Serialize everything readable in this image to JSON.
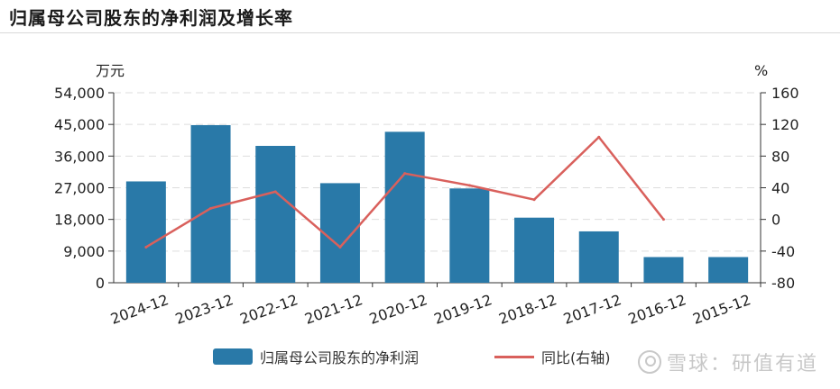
{
  "header": {
    "title": "归属母公司股东的净利润及增长率"
  },
  "chart_data": {
    "type": "bar",
    "categories": [
      "2024-12",
      "2023-12",
      "2022-12",
      "2021-12",
      "2020-12",
      "2019-12",
      "2018-12",
      "2017-12",
      "2016-12",
      "2015-12"
    ],
    "series": [
      {
        "name": "归属母公司股东的净利润",
        "type": "bar",
        "axis": "left",
        "values": [
          28800,
          44800,
          38900,
          28300,
          42900,
          26800,
          18500,
          14600,
          7300,
          7300
        ]
      },
      {
        "name": "同比(右轴)",
        "type": "line",
        "axis": "right",
        "values": [
          -35,
          14,
          35,
          -35,
          58,
          43,
          25,
          104,
          0,
          null
        ]
      }
    ],
    "left_axis": {
      "unit": "万元",
      "ylim": [
        0,
        54000
      ],
      "ticks": [
        "0",
        "9,000",
        "18,000",
        "27,000",
        "36,000",
        "45,000",
        "54,000"
      ]
    },
    "right_axis": {
      "unit": "%",
      "ylim": [
        -80,
        160
      ],
      "ticks": [
        "-80",
        "-40",
        "0",
        "40",
        "80",
        "120",
        "160"
      ]
    },
    "grid": true,
    "legend_position": "bottom",
    "colors": {
      "bar": "#2979a8",
      "line": "#d9605c",
      "grid": "#dddddd"
    }
  },
  "legend": {
    "bar_label": "归属母公司股东的净利润",
    "line_label": "同比(右轴)"
  },
  "watermark": {
    "text": "雪球：研值有道"
  }
}
